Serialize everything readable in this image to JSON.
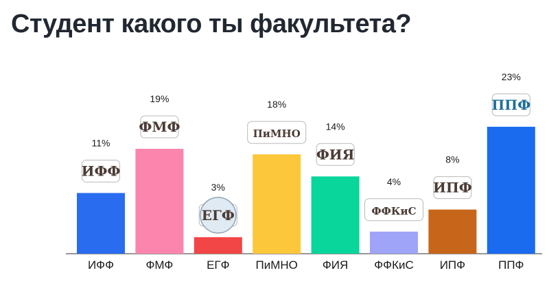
{
  "title": "Студент какого ты факультета?",
  "chart_data": {
    "type": "bar",
    "title": "Студент какого ты факультета?",
    "categories": [
      "ИФФ",
      "ФМФ",
      "ЕГФ",
      "ПиМНО",
      "ФИЯ",
      "ФФКиС",
      "ИПФ",
      "ППФ"
    ],
    "values": [
      11,
      19,
      3,
      18,
      14,
      4,
      8,
      23
    ],
    "value_labels": [
      "11%",
      "19%",
      "3%",
      "18%",
      "14%",
      "4%",
      "8%",
      "23%"
    ],
    "colors": [
      "#2a6cf0",
      "#fb85ad",
      "#f24545",
      "#fcc73b",
      "#08d69a",
      "#9fa4f8",
      "#c7661b",
      "#1b6bef"
    ],
    "logo_texts": [
      "ИФФ",
      "ФМФ",
      "ЕГФ",
      "ПиМНО",
      "ФИЯ",
      "ФФКиС",
      "ИПФ",
      "ППФ"
    ],
    "unit": "%",
    "ylim": [
      0,
      25
    ],
    "grid": false,
    "legend": "none"
  }
}
